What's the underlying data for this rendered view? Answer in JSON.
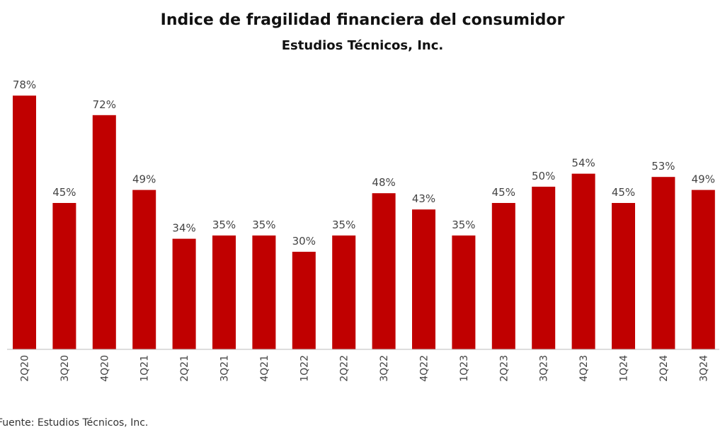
{
  "chart_data": {
    "type": "bar",
    "title": "Indice de fragilidad financiera del consumidor",
    "subtitle": "Estudios Técnicos, Inc.",
    "categories": [
      "2Q20",
      "3Q20",
      "4Q20",
      "1Q21",
      "2Q21",
      "3Q21",
      "4Q21",
      "1Q22",
      "2Q22",
      "3Q22",
      "4Q22",
      "1Q23",
      "2Q23",
      "3Q23",
      "4Q23",
      "1Q24",
      "2Q24",
      "3Q24"
    ],
    "values": [
      78,
      45,
      72,
      49,
      34,
      35,
      35,
      30,
      35,
      48,
      43,
      35,
      45,
      50,
      54,
      45,
      53,
      49
    ],
    "value_suffix": "%",
    "xlabel": "",
    "ylabel": "",
    "ylim": [
      0,
      80
    ],
    "grid": false,
    "bar_color": "#C00000"
  },
  "footer": "Fuente: Estudios Técnicos, Inc."
}
